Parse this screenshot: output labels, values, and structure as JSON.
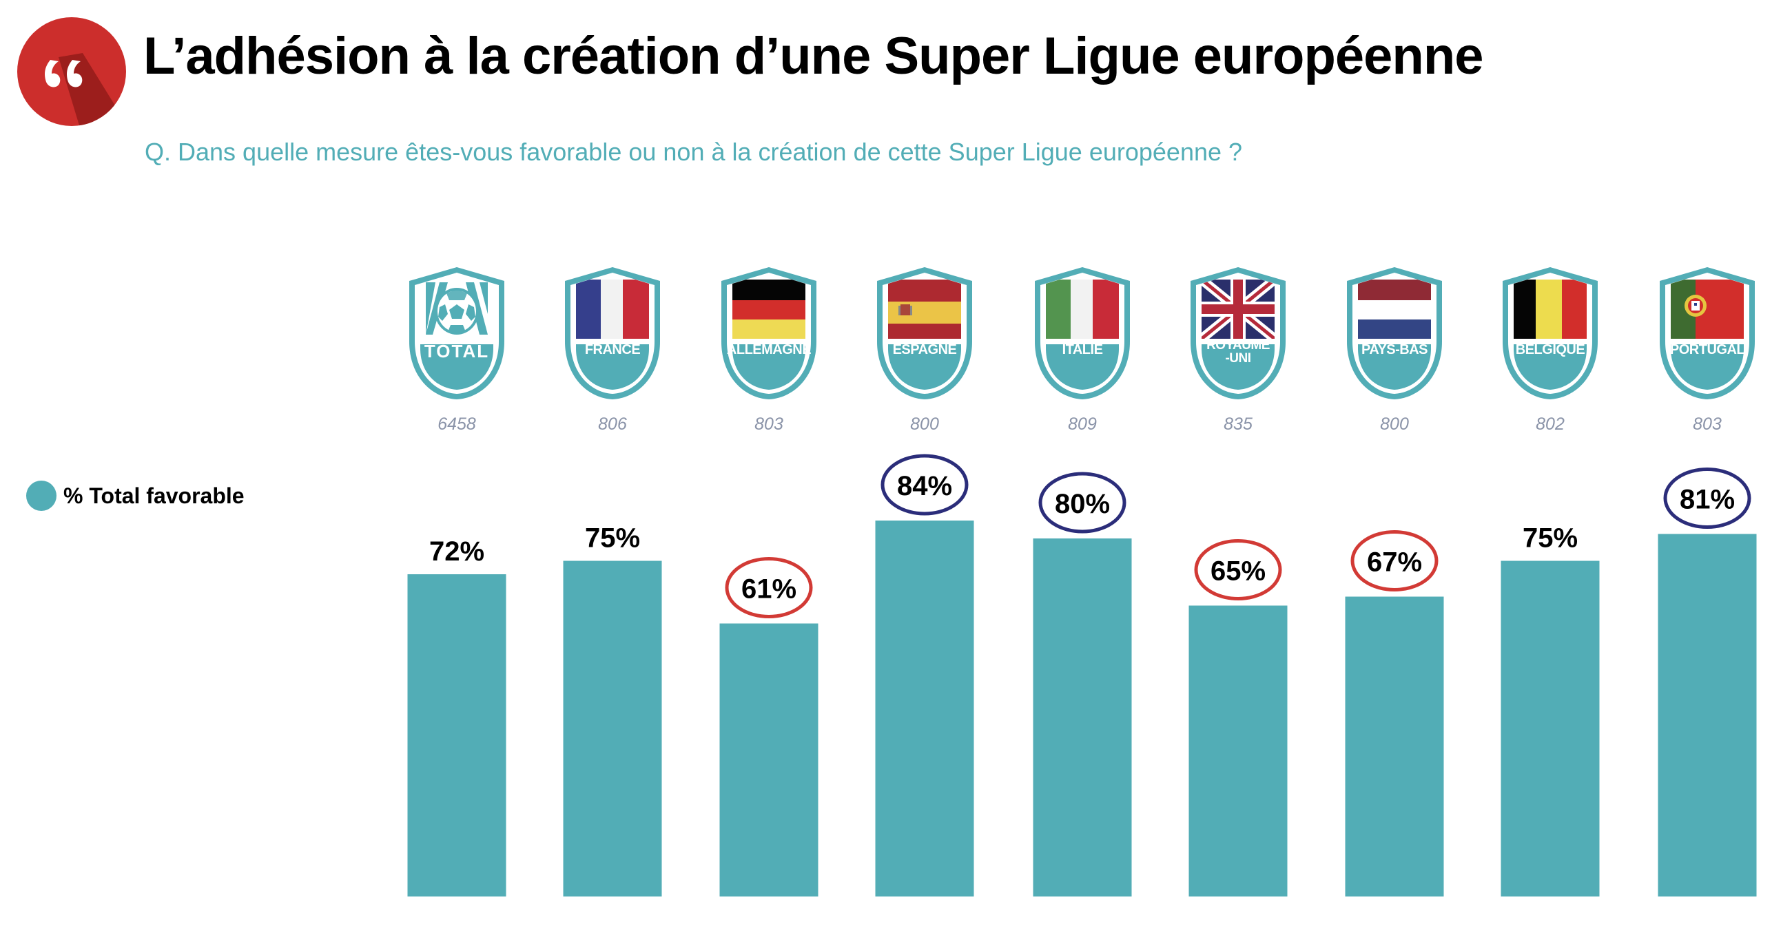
{
  "header": {
    "logo_icon": "quote-icon",
    "title": "L’adhésion à la création d’une Super Ligue européenne",
    "subtitle": "Q. Dans quelle mesure êtes-vous favorable ou non à la création de cette Super Ligue européenne ?"
  },
  "legend": {
    "label": "% Total favorable",
    "color": "#52adb6"
  },
  "colors": {
    "bar": "#52adb6",
    "highlight_high": "#2b2d7a",
    "highlight_low": "#d23a35",
    "title_logo": "#cc2e2c"
  },
  "badges": [
    {
      "label": "TOTAL",
      "sample": "6458",
      "icon": "soccer-ball-icon"
    },
    {
      "label": "FRANCE",
      "sample": "806",
      "icon": "france-flag-icon"
    },
    {
      "label": "ALLEMAGNE",
      "sample": "803",
      "icon": "germany-flag-icon"
    },
    {
      "label": "ESPAGNE",
      "sample": "800",
      "icon": "spain-flag-icon"
    },
    {
      "label": "ITALIE",
      "sample": "809",
      "icon": "italy-flag-icon"
    },
    {
      "label": "ROYAUME",
      "label2": "-UNI",
      "sample": "835",
      "icon": "uk-flag-icon"
    },
    {
      "label": "PAYS-BAS",
      "sample": "800",
      "icon": "netherlands-flag-icon"
    },
    {
      "label": "BELGIQUE",
      "sample": "802",
      "icon": "belgium-flag-icon"
    },
    {
      "label": "PORTUGAL",
      "sample": "803",
      "icon": "portugal-flag-icon"
    }
  ],
  "chart_data": {
    "type": "bar",
    "title": "L’adhésion à la création d’une Super Ligue européenne",
    "subtitle": "Q. Dans quelle mesure êtes-vous favorable ou non à la création de cette Super Ligue européenne ?",
    "xlabel": "",
    "ylabel": "",
    "ylim": [
      0,
      100
    ],
    "grid": false,
    "legend": {
      "entries": [
        "% Total favorable"
      ],
      "placement": "left"
    },
    "categories": [
      "TOTAL",
      "FRANCE",
      "ALLEMAGNE",
      "ESPAGNE",
      "ITALIE",
      "ROYAUME-UNI",
      "PAYS-BAS",
      "BELGIQUE",
      "PORTUGAL"
    ],
    "sample_sizes": [
      6458,
      806,
      803,
      800,
      809,
      835,
      800,
      802,
      803
    ],
    "series": [
      {
        "name": "% Total favorable",
        "values": [
          72,
          75,
          61,
          84,
          80,
          65,
          67,
          75,
          81
        ]
      }
    ],
    "data_labels": [
      "72%",
      "75%",
      "61%",
      "84%",
      "80%",
      "65%",
      "67%",
      "75%",
      "81%"
    ],
    "highlights": [
      "none",
      "none",
      "low",
      "high",
      "high",
      "low",
      "low",
      "none",
      "high"
    ]
  }
}
